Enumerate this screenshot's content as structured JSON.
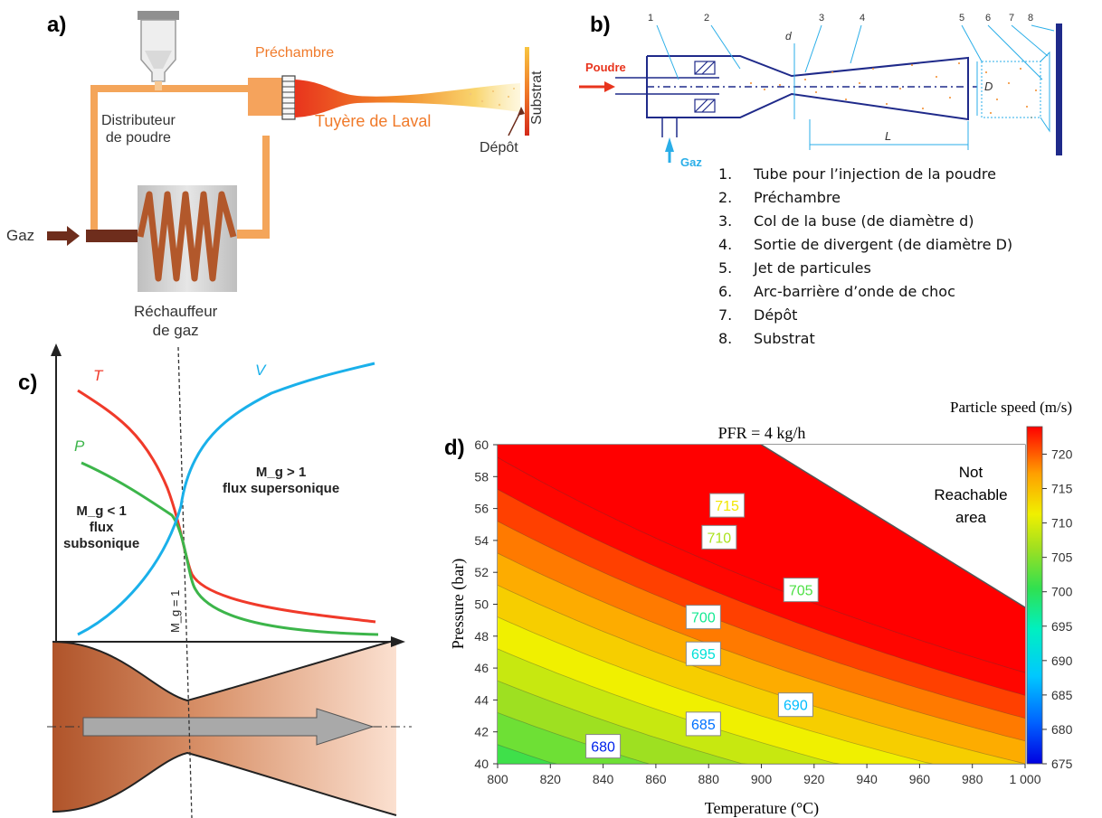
{
  "panels": {
    "a": {
      "label": "a)",
      "prechamber": "Préchambre",
      "powder_feeder": [
        "Distributeur",
        "de poudre"
      ],
      "laval": "Tuyère de Laval",
      "gas": "Gaz",
      "heater": [
        "Réchauffeur",
        "de gaz"
      ],
      "deposit": "Dépôt",
      "substrate": "Substrat"
    },
    "b": {
      "label": "b)",
      "powder": "Poudre",
      "gas": "Gaz",
      "numbers": [
        "1",
        "2",
        "3",
        "4",
        "5",
        "6",
        "7",
        "8"
      ],
      "dim_d": "d",
      "dim_D": "D",
      "dim_L": "L",
      "legend": [
        {
          "num": "1.",
          "text": "Tube pour l’injection de la poudre"
        },
        {
          "num": "2.",
          "text": "Préchambre"
        },
        {
          "num": "3.",
          "text": "Col de la buse (de diamètre d)"
        },
        {
          "num": "4.",
          "text": "Sortie de divergent (de diamètre D)"
        },
        {
          "num": "5.",
          "text": "Jet de particules"
        },
        {
          "num": "6.",
          "text": "Arc-barrière d’onde de choc"
        },
        {
          "num": "7.",
          "text": "Dépôt"
        },
        {
          "num": "8.",
          "text": "Substrat"
        }
      ]
    },
    "c": {
      "label": "c)",
      "curve_T": "T",
      "curve_V": "V",
      "curve_P": "P",
      "supersonic_cond": "M_g > 1",
      "supersonic_text": "flux supersonique",
      "subsonic_cond": "M_g < 1",
      "subsonic_text": [
        "flux",
        "subsonique"
      ],
      "mach_line": "M_g = 1",
      "colors": {
        "T": "#f03a2a",
        "V": "#1ab0ea",
        "P": "#3cb54a"
      }
    },
    "d": {
      "label": "d)",
      "title": "PFR = 4 kg/h",
      "colorbar_title": "Particle speed (m/s)",
      "not_reachable": [
        "Not",
        "Reachable",
        "area"
      ]
    }
  },
  "chart_data": {
    "type": "heatmap",
    "title": "PFR = 4 kg/h",
    "xlabel": "Temperature (°C)",
    "ylabel": "Pressure (bar)",
    "xlim": [
      800,
      1000
    ],
    "ylim": [
      40,
      60
    ],
    "x_ticks": [
      "800",
      "820",
      "840",
      "860",
      "880",
      "900",
      "920",
      "940",
      "960",
      "980",
      "1 000"
    ],
    "y_ticks": [
      "40",
      "42",
      "44",
      "46",
      "48",
      "50",
      "52",
      "54",
      "56",
      "58",
      "60"
    ],
    "colorbar": {
      "title": "Particle speed (m/s)",
      "range": [
        675,
        724
      ],
      "ticks": [
        "675",
        "680",
        "685",
        "690",
        "695",
        "700",
        "705",
        "710",
        "715",
        "720"
      ]
    },
    "contour_labels": [
      {
        "value": "715",
        "x": 887,
        "y": 56.2
      },
      {
        "value": "710",
        "x": 884,
        "y": 54.2
      },
      {
        "value": "705",
        "x": 915,
        "y": 50.9
      },
      {
        "value": "700",
        "x": 878,
        "y": 49.2
      },
      {
        "value": "695",
        "x": 878,
        "y": 46.9
      },
      {
        "value": "690",
        "x": 913,
        "y": 43.7
      },
      {
        "value": "685",
        "x": 878,
        "y": 42.5
      },
      {
        "value": "680",
        "x": 840,
        "y": 41.1
      }
    ],
    "not_reachable_boundary": [
      {
        "x": 900,
        "y": 60
      },
      {
        "x": 1000,
        "y": 49.8
      }
    ],
    "annotation": "Not Reachable area"
  }
}
